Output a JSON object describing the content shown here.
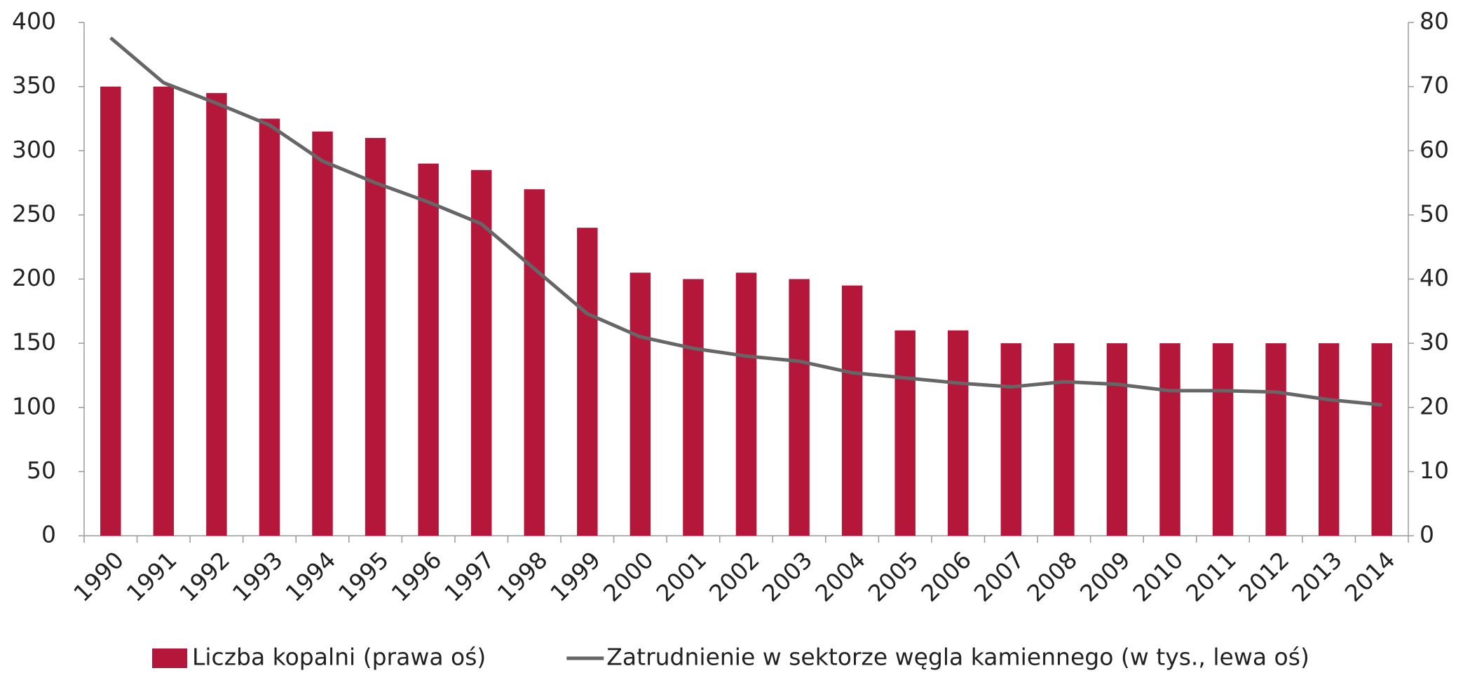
{
  "chart_data": {
    "type": "bar",
    "categories": [
      "1990",
      "1991",
      "1992",
      "1993",
      "1994",
      "1995",
      "1996",
      "1997",
      "1998",
      "1999",
      "2000",
      "2001",
      "2002",
      "2003",
      "2004",
      "2005",
      "2006",
      "2007",
      "2008",
      "2009",
      "2010",
      "2011",
      "2012",
      "2013",
      "2014"
    ],
    "series": [
      {
        "name": "Liczba kopalni (prawa oś)",
        "color": "#b5173b",
        "axis": "y2",
        "type": "bar",
        "values": [
          70,
          70,
          69,
          65,
          63,
          62,
          58,
          57,
          54,
          48,
          41,
          40,
          41,
          40,
          39,
          32,
          32,
          30,
          30,
          30,
          30,
          30,
          30,
          30,
          30
        ]
      },
      {
        "name": "Zatrudnienie w sektorze węgla kamiennego (w tys., lewa oś)",
        "color": "#666666",
        "type": "line",
        "values": [
          388,
          353,
          337,
          320,
          292,
          275,
          260,
          243,
          208,
          173,
          155,
          146,
          140,
          136,
          127,
          123,
          119,
          116,
          120,
          118,
          113,
          113,
          112,
          106,
          102
        ]
      }
    ],
    "ylim": [
      0,
      400
    ],
    "yticks": [
      0,
      50,
      100,
      150,
      200,
      250,
      300,
      350,
      400
    ],
    "y2lim": [
      0,
      80
    ],
    "y2ticks": [
      0,
      10,
      20,
      30,
      40,
      50,
      60,
      70,
      80
    ],
    "grid": false,
    "legend": "bottom"
  }
}
